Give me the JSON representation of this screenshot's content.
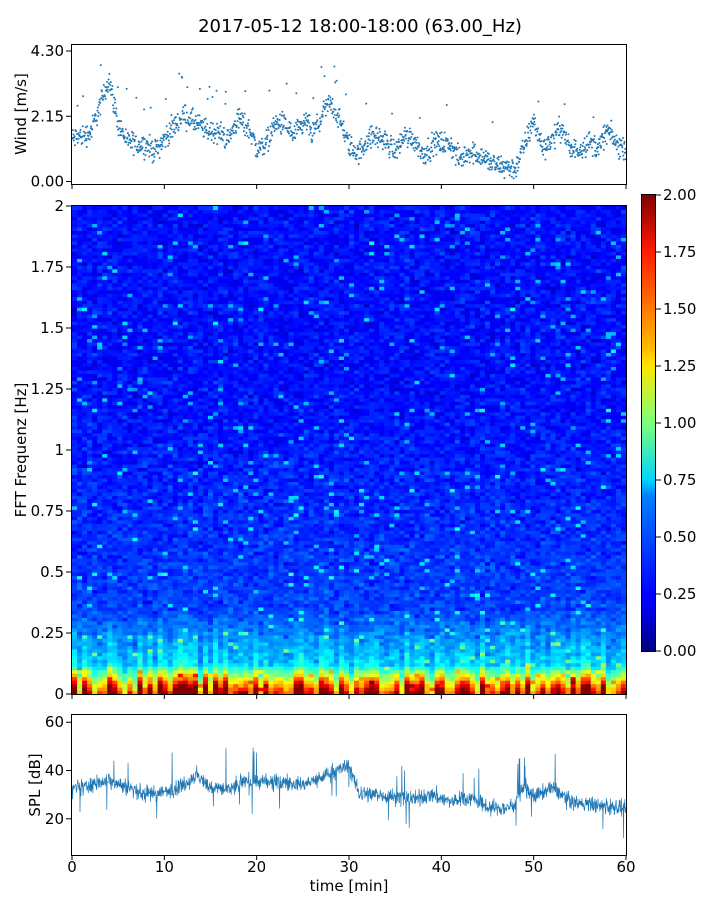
{
  "figure": {
    "title": "2017-05-12 18:00-18:00 (63.00_Hz)"
  },
  "chart_data": [
    {
      "type": "scatter",
      "panel": "wind",
      "ylabel": "Wind [m/s]",
      "yticks": [
        "0.00",
        "2.15",
        "4.30"
      ],
      "ylim": [
        0,
        4.3
      ],
      "xlim": [
        0,
        60
      ],
      "color": "#1f77b4",
      "series": [
        {
          "x": [
            0,
            2,
            3.5,
            4,
            5,
            6,
            8,
            9,
            10.5,
            12,
            13.5,
            14.5,
            16,
            17,
            18,
            19.5,
            20,
            21,
            22,
            23,
            24,
            25.5,
            26,
            27.5,
            28,
            29,
            30,
            31,
            32,
            33,
            34,
            35,
            36,
            37,
            38,
            39.5,
            41,
            42,
            43,
            44,
            45,
            46,
            47,
            48,
            49,
            50,
            51,
            52,
            53,
            54,
            55,
            56,
            57,
            58,
            59,
            60
          ],
          "y": [
            1.4,
            1.6,
            2.9,
            3.4,
            1.9,
            1.3,
            1.2,
            1.0,
            1.6,
            2.2,
            1.9,
            1.7,
            1.6,
            1.4,
            2.1,
            1.6,
            1.0,
            1.3,
            1.9,
            1.9,
            1.5,
            2.0,
            1.5,
            2.4,
            2.6,
            2.0,
            1.2,
            0.9,
            1.4,
            1.5,
            1.3,
            1.0,
            1.5,
            1.4,
            0.9,
            1.3,
            1.2,
            0.7,
            1.0,
            0.9,
            0.7,
            0.5,
            0.5,
            0.4,
            1.2,
            2.0,
            1.1,
            1.4,
            1.8,
            1.0,
            1.1,
            1.3,
            1.1,
            1.7,
            1.2,
            1.1
          ]
        }
      ]
    },
    {
      "type": "heatmap",
      "panel": "spectrogram",
      "ylabel": "FFT Frequenz [Hz]",
      "yticks": [
        "0",
        "0.25",
        "0.5",
        "0.75",
        "1",
        "1.25",
        "1.5",
        "1.75",
        "2"
      ],
      "ylim": [
        0,
        2
      ],
      "xlim": [
        0,
        60
      ],
      "colormap": "jet",
      "colorbar": {
        "ticks": [
          "0.00",
          "0.25",
          "0.50",
          "0.75",
          "1.00",
          "1.25",
          "1.50",
          "1.75",
          "2.00"
        ],
        "range": [
          0,
          2
        ]
      }
    },
    {
      "type": "line",
      "panel": "spl",
      "ylabel": "SPL [dB]",
      "xlabel": "time [min]",
      "yticks": [
        "20",
        "40",
        "60"
      ],
      "xticks": [
        "0",
        "10",
        "20",
        "30",
        "40",
        "50",
        "60"
      ],
      "ylim": [
        5,
        63
      ],
      "xlim": [
        0,
        60
      ],
      "color": "#1f77b4",
      "series": [
        {
          "x": [
            0,
            2,
            4,
            6,
            8,
            10,
            12,
            13.5,
            15,
            17,
            19,
            21,
            23,
            25,
            27,
            28.5,
            30,
            31,
            33,
            35,
            37,
            39,
            41,
            43,
            45,
            47,
            48,
            49,
            50,
            52,
            54,
            56,
            58,
            60
          ],
          "y": [
            32,
            34,
            36,
            33,
            30,
            31,
            34,
            38,
            33,
            32,
            36,
            35,
            35,
            34,
            37,
            40,
            42,
            31,
            30,
            29,
            28,
            30,
            27,
            29,
            25,
            24,
            27,
            33,
            29,
            33,
            27,
            26,
            25,
            24
          ]
        }
      ]
    }
  ]
}
